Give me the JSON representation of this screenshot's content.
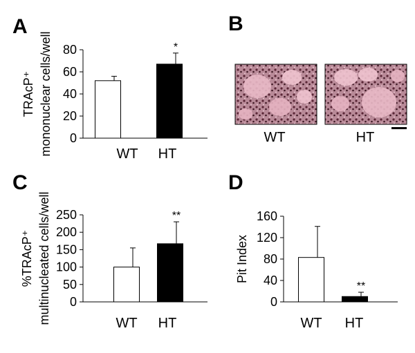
{
  "chart_data": [
    {
      "panel": "A",
      "type": "bar",
      "ylabel": [
        "TRAcP⁺",
        "mononuclear cells/well"
      ],
      "categories": [
        "WT",
        "HT"
      ],
      "values": [
        52,
        67
      ],
      "errors": [
        4,
        10
      ],
      "colors": [
        "#ffffff",
        "#000000"
      ],
      "ylim": [
        0,
        80
      ],
      "yticks": [
        0,
        20,
        40,
        60,
        80
      ],
      "annotations": [
        {
          "x": "HT",
          "text": "*"
        }
      ]
    },
    {
      "panel": "B",
      "type": "image",
      "labels": [
        "WT",
        "HT"
      ]
    },
    {
      "panel": "C",
      "type": "bar",
      "ylabel": [
        "%TRAcP⁺",
        "multinucleated cells/well"
      ],
      "categories": [
        "WT",
        "HT"
      ],
      "values": [
        100,
        167
      ],
      "errors": [
        55,
        63
      ],
      "colors": [
        "#ffffff",
        "#000000"
      ],
      "ylim": [
        0,
        250
      ],
      "yticks": [
        0,
        50,
        100,
        150,
        200,
        250
      ],
      "annotations": [
        {
          "x": "HT",
          "text": "**"
        }
      ]
    },
    {
      "panel": "D",
      "type": "bar",
      "ylabel": [
        "Pit Index"
      ],
      "categories": [
        "WT",
        "HT"
      ],
      "values": [
        83,
        10
      ],
      "errors": [
        58,
        8
      ],
      "colors": [
        "#ffffff",
        "#000000"
      ],
      "ylim": [
        0,
        160
      ],
      "yticks": [
        0,
        40,
        80,
        120,
        160
      ],
      "annotations": [
        {
          "x": "HT",
          "text": "**"
        }
      ]
    }
  ]
}
